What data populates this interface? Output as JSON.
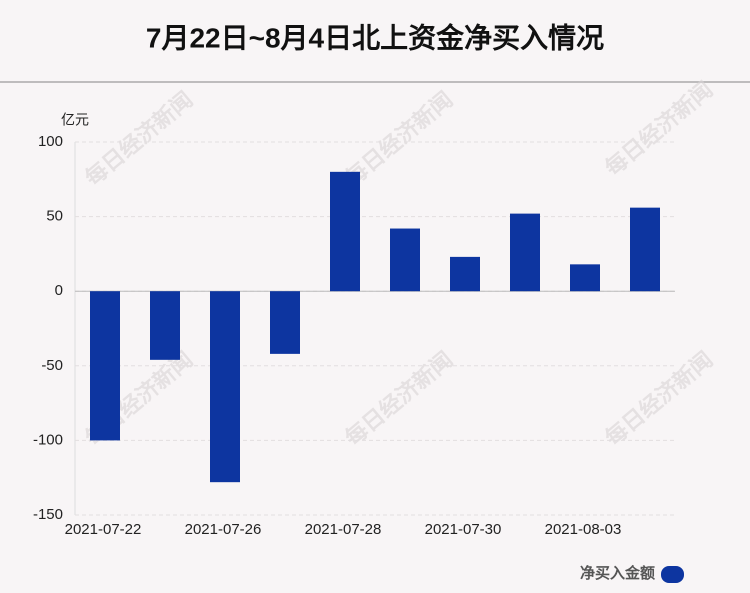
{
  "chart_data": {
    "type": "bar",
    "title": "7月22日~8月4日北上资金净买入情况",
    "y_unit": "亿元",
    "categories": [
      "2021-07-22",
      null,
      "2021-07-26",
      null,
      "2021-07-28",
      null,
      "2021-07-30",
      null,
      "2021-08-03",
      null
    ],
    "series": [
      {
        "name": "净买入金额",
        "color": "#0d35a0",
        "values": [
          -100,
          -46,
          -128,
          -42,
          80,
          42,
          23,
          52,
          18,
          56
        ]
      }
    ],
    "ylim": [
      -150,
      100
    ],
    "yticks": [
      -150,
      -100,
      -50,
      0,
      50,
      100
    ],
    "grid": true,
    "legend": "bottom-right",
    "watermark": "每日经济新闻"
  }
}
